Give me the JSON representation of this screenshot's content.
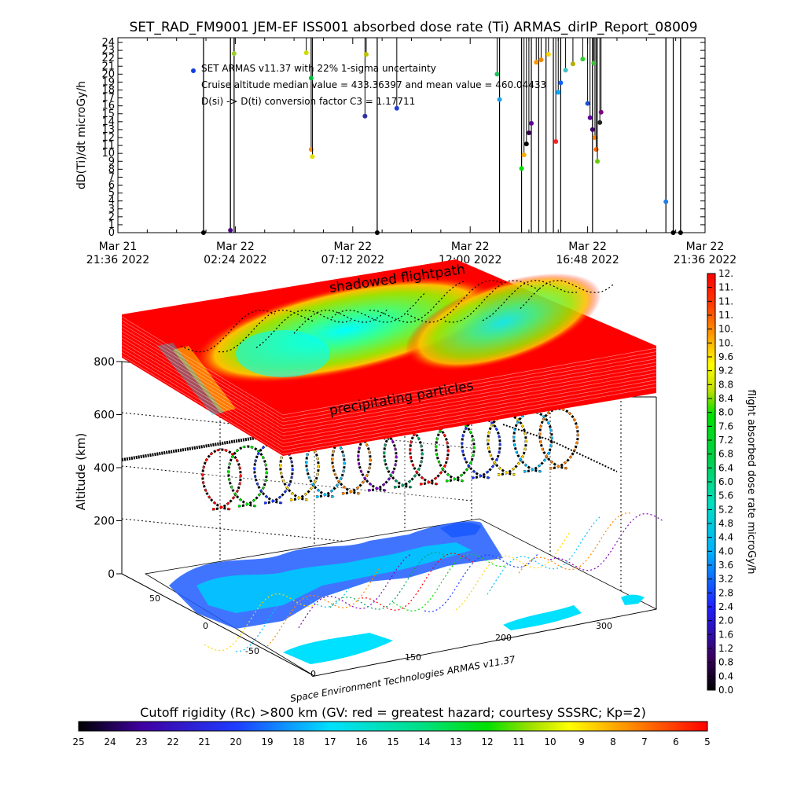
{
  "title": "SET_RAD_FM9001  JEM-EF ISS001 absorbed dose rate (Ti) ARMAS_dirIP_Report_08009",
  "chart_data": [
    {
      "type": "scatter",
      "ylabel": "dD(Ti)/dt microGy/h",
      "ylim": [
        0,
        24
      ],
      "y_ticks": [
        "0",
        "1",
        "2",
        "3",
        "4",
        "5",
        "6",
        "7",
        "8",
        "9",
        "10",
        "11",
        "12",
        "13",
        "14",
        "15",
        "16",
        "17",
        "18",
        "19",
        "20",
        "21",
        "22",
        "23",
        "24"
      ],
      "x_ticks": [
        {
          "l1": "Mar 21",
          "l2": "21:36 2022"
        },
        {
          "l1": "Mar 22",
          "l2": "02:24 2022"
        },
        {
          "l1": "Mar 22",
          "l2": "07:12 2022"
        },
        {
          "l1": "Mar 22",
          "l2": "12:00 2022"
        },
        {
          "l1": "Mar 22",
          "l2": "16:48 2022"
        },
        {
          "l1": "Mar 22",
          "l2": "21:36 2022"
        }
      ],
      "annotations": [
        "SET ARMAS v11.37 with 22% 1-sigma uncertainty",
        "Cruise altitude median value = 433.36397 and mean value = 460.04433",
        "D(si) -> D(ti) conversion factor C3 = 1.17711"
      ],
      "points": [
        {
          "t": 3.5,
          "y": 0,
          "c": "#000000"
        },
        {
          "t": 4.6,
          "y": 0.3,
          "c": "#4a0080"
        },
        {
          "t": 4.75,
          "y": 22.6,
          "c": "#9acd32"
        },
        {
          "t": 7.9,
          "y": 10.5,
          "c": "#ff8c00"
        },
        {
          "t": 7.95,
          "y": 9.6,
          "c": "#e0e000"
        },
        {
          "t": 7.9,
          "y": 19.5,
          "c": "#00c040"
        },
        {
          "t": 7.7,
          "y": 22.7,
          "c": "#ccdd00"
        },
        {
          "t": 10.1,
          "y": 14.7,
          "c": "#3030a0"
        },
        {
          "t": 10.15,
          "y": 22.5,
          "c": "#c0c000"
        },
        {
          "t": 10.6,
          "y": 0,
          "c": "#000000"
        },
        {
          "t": 11.4,
          "y": 15.7,
          "c": "#2040d0"
        },
        {
          "t": 15.5,
          "y": 20.0,
          "c": "#20c060"
        },
        {
          "t": 15.6,
          "y": 16.8,
          "c": "#20a0e0"
        },
        {
          "t": 16.5,
          "y": 8.1,
          "c": "#00dd00"
        },
        {
          "t": 16.6,
          "y": 9.8,
          "c": "#ffaa00"
        },
        {
          "t": 16.7,
          "y": 11.2,
          "c": "#000000"
        },
        {
          "t": 16.8,
          "y": 12.6,
          "c": "#300050"
        },
        {
          "t": 16.9,
          "y": 13.8,
          "c": "#5a0090"
        },
        {
          "t": 17.1,
          "y": 21.5,
          "c": "#ff9900"
        },
        {
          "t": 17.3,
          "y": 21.8,
          "c": "#ee8800"
        },
        {
          "t": 17.6,
          "y": 22.5,
          "c": "#ffd700"
        },
        {
          "t": 17.9,
          "y": 11.5,
          "c": "#ff2020"
        },
        {
          "t": 18.0,
          "y": 17.7,
          "c": "#00aaff"
        },
        {
          "t": 18.1,
          "y": 18.9,
          "c": "#1060ff"
        },
        {
          "t": 18.3,
          "y": 20.5,
          "c": "#40c0c0"
        },
        {
          "t": 18.6,
          "y": 21.3,
          "c": "#b0b000"
        },
        {
          "t": 19.0,
          "y": 21.9,
          "c": "#30d030"
        },
        {
          "t": 19.2,
          "y": 16.3,
          "c": "#2050d0"
        },
        {
          "t": 19.3,
          "y": 14.5,
          "c": "#6000a0"
        },
        {
          "t": 19.4,
          "y": 13.0,
          "c": "#400070"
        },
        {
          "t": 19.5,
          "y": 12.0,
          "c": "#ff8800"
        },
        {
          "t": 19.55,
          "y": 10.5,
          "c": "#ff6600"
        },
        {
          "t": 19.6,
          "y": 9.0,
          "c": "#66cc00"
        },
        {
          "t": 19.45,
          "y": 21.4,
          "c": "#40c040"
        },
        {
          "t": 19.7,
          "y": 13.9,
          "c": "#202020"
        },
        {
          "t": 19.75,
          "y": 15.2,
          "c": "#800080"
        },
        {
          "t": 22.4,
          "y": 3.9,
          "c": "#2080e0"
        },
        {
          "t": 22.7,
          "y": 0,
          "c": "#000000"
        },
        {
          "t": 23.0,
          "y": 0,
          "c": "#000000"
        }
      ],
      "vlines": [
        3.5,
        4.6,
        4.75,
        10.6,
        15.6,
        16.5,
        16.9,
        17.2,
        17.5,
        17.8,
        18.1,
        19.4,
        22.4,
        22.7,
        23.0
      ]
    },
    {
      "type": "heatmap",
      "zlabel": "Altitude (km)",
      "z_ticks": [
        "0",
        "200",
        "400",
        "600",
        "800"
      ],
      "x_ticks": [
        "0",
        "150",
        "200",
        "300"
      ],
      "y_ticks": [
        "-50",
        "0",
        "50"
      ],
      "layer_labels": [
        "shadowed flightpath",
        "precipitating particles"
      ],
      "footer": "Space Environment Technologies ARMAS v11.37"
    },
    {
      "type": "heatmap",
      "colorbar_label": "flight absorbed dose rate microGy/h",
      "colorbar_ticks": [
        "0.0",
        "0.4",
        "0.8",
        "1.2",
        "1.6",
        "2.0",
        "2.4",
        "2.8",
        "3.2",
        "3.6",
        "4.0",
        "4.4",
        "4.8",
        "5.2",
        "5.6",
        "6.0",
        "6.4",
        "6.8",
        "7.2",
        "7.6",
        "8.0",
        "8.4",
        "8.8",
        "9.2",
        "9.6",
        "10.",
        "10.",
        "11.",
        "11.",
        "11.",
        "12."
      ]
    },
    {
      "type": "heatmap",
      "colorbar_label": "Cutoff rigidity (Rc) >800 km (GV: red = greatest hazard; courtesy SSSRC; Kp=2)",
      "colorbar_ticks": [
        "25",
        "24",
        "23",
        "22",
        "21",
        "20",
        "19",
        "18",
        "17",
        "16",
        "15",
        "14",
        "13",
        "12",
        "11",
        "10",
        "9",
        "8",
        "7",
        "6",
        "5"
      ]
    }
  ],
  "colors": {
    "scale": [
      "#000000",
      "#3a0060",
      "#4000a0",
      "#1e3cff",
      "#00a0ff",
      "#00e0e0",
      "#00c870",
      "#00e000",
      "#a0e000",
      "#ffff00",
      "#ffa000",
      "#ff5000",
      "#ff0000"
    ]
  }
}
